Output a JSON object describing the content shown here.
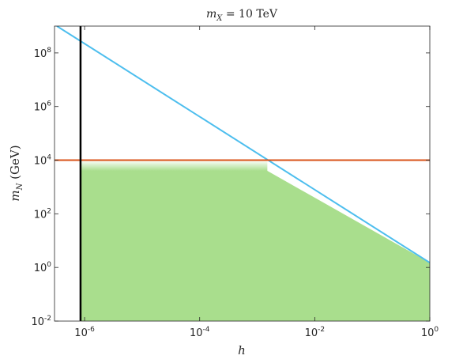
{
  "chart_data": {
    "type": "line",
    "title": {
      "base": "m",
      "sub": "X",
      "rest": " = 10 TeV"
    },
    "xlabel": "h",
    "ylabel": {
      "base": "m",
      "sub": "N",
      "rest": " (GeV)"
    },
    "xscale": "log",
    "yscale": "log",
    "xlim": [
      3e-07,
      1
    ],
    "ylim": [
      0.01,
      1000000000.0
    ],
    "xticks": [
      {
        "value": 1e-06,
        "base": "10",
        "exp": "-6"
      },
      {
        "value": 0.0001,
        "base": "10",
        "exp": "-4"
      },
      {
        "value": 0.01,
        "base": "10",
        "exp": "-2"
      },
      {
        "value": 1,
        "base": "10",
        "exp": "0"
      }
    ],
    "yticks": [
      {
        "value": 0.01,
        "base": "10",
        "exp": "-2"
      },
      {
        "value": 1,
        "base": "10",
        "exp": "0"
      },
      {
        "value": 100,
        "base": "10",
        "exp": "2"
      },
      {
        "value": 10000,
        "base": "10",
        "exp": "4"
      },
      {
        "value": 1000000,
        "base": "10",
        "exp": "6"
      },
      {
        "value": 100000000,
        "base": "10",
        "exp": "8"
      }
    ],
    "grid": false,
    "series": [
      {
        "color": "#4DBEEE",
        "x": [
          3.3e-07,
          1
        ],
        "y": [
          1000000000.0,
          1.5
        ]
      },
      {
        "color": "#D95319",
        "x": [
          3e-07,
          1
        ],
        "y": [
          10000,
          10000
        ]
      },
      {
        "color": "#000000",
        "x": [
          8.5e-07,
          8.5e-07
        ],
        "y": [
          0.01,
          1000000000.0
        ]
      }
    ],
    "region": {
      "color": "#A9DE8D",
      "x_left": 8.5e-07,
      "fade_top": 10000,
      "fade_bottom": 4000,
      "boundary": {
        "x": [
          8.5e-07,
          0.0015,
          1
        ],
        "y": [
          4000,
          4000,
          1.5
        ]
      }
    }
  }
}
